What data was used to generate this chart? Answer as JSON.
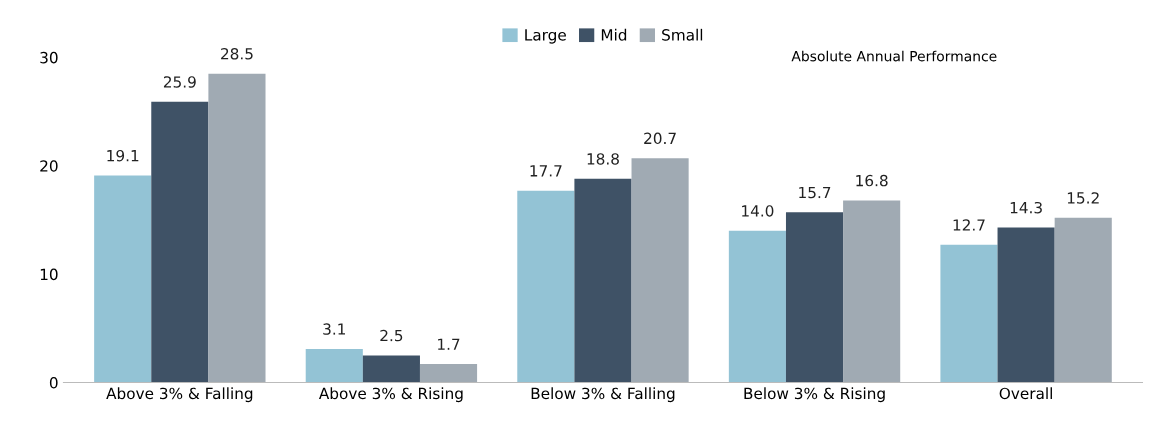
{
  "chart_data": {
    "type": "bar",
    "categories": [
      "Above 3% & Falling",
      "Above 3% & Rising",
      "Below 3% & Falling",
      "Below 3% & Rising",
      "Overall"
    ],
    "series": [
      {
        "name": "Large",
        "color": "#93c3d5",
        "values": [
          19.1,
          3.1,
          17.7,
          14.0,
          12.7
        ],
        "value_labels": [
          "19.1",
          "3.1",
          "17.7",
          "14.0",
          "12.7"
        ]
      },
      {
        "name": "Mid",
        "color": "#3f5266",
        "values": [
          25.9,
          2.5,
          18.8,
          15.7,
          14.3
        ],
        "value_labels": [
          "25.9",
          "2.5",
          "18.8",
          "15.7",
          "14.3"
        ]
      },
      {
        "name": "Small",
        "color": "#a0aab3",
        "values": [
          28.5,
          1.7,
          20.7,
          16.8,
          15.2
        ],
        "value_labels": [
          "28.5",
          "1.7",
          "20.7",
          "16.8",
          "15.2"
        ]
      }
    ],
    "ylim": [
      0,
      30
    ],
    "yticks": [
      0,
      10,
      20,
      30
    ],
    "annotations": [
      {
        "text": "Absolute Annual Performance"
      }
    ],
    "grid": false,
    "legend": "top"
  }
}
